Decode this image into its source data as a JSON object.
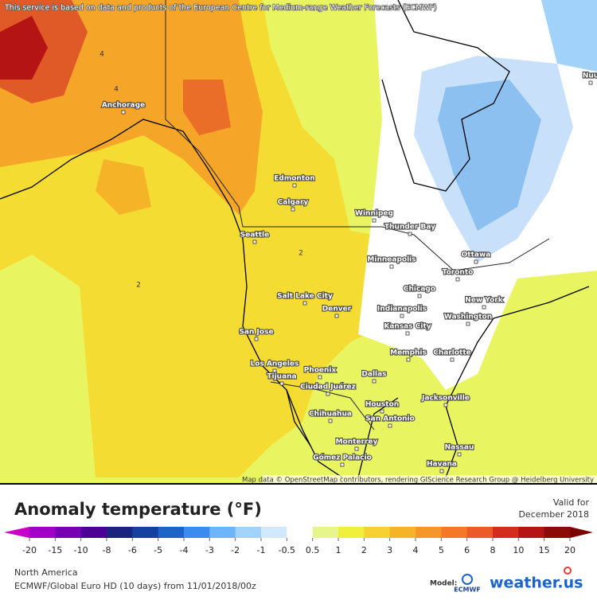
{
  "map": {
    "attribution_top": "This service is based on data and products of the European Centre for Medium-range Weather Forecasts (ECMWF)",
    "attribution_bottom": "Map data © OpenStreetMap contributors, rendering GIScience Research Group @ Heidelberg University",
    "contour_labels": [
      "4",
      "4",
      "2",
      "2"
    ],
    "cities": [
      "Anchorage",
      "Edmonton",
      "Calgary",
      "Winnipeg",
      "Thunder Bay",
      "Seattle",
      "Minneapolis",
      "Ottawa",
      "Toronto",
      "Chicago",
      "Salt Lake City",
      "Denver",
      "New York",
      "Indianapolis",
      "Washington",
      "Kansas City",
      "San Jose",
      "Memphis",
      "Charlotte",
      "Los Angeles",
      "Phoenix",
      "Dallas",
      "Tijuana",
      "Ciudad Juárez",
      "Jacksonville",
      "Houston",
      "Chihuahua",
      "San Antonio",
      "Monterrey",
      "Nassau",
      "Gómez Palacio",
      "Havana",
      "Nuu"
    ]
  },
  "legend": {
    "title": "Anomaly temperature (°F)",
    "valid_for": "Valid for",
    "valid_date": "December 2018",
    "colorbar": {
      "ticks": [
        -20,
        -15,
        -10,
        -8,
        -6,
        -5,
        -4,
        -3,
        -2,
        -1,
        -0.5,
        0.5,
        1,
        2,
        3,
        4,
        5,
        6,
        8,
        10,
        15,
        20
      ],
      "colors": [
        "#a000c8",
        "#7800b4",
        "#4b0096",
        "#1a237e",
        "#1540a0",
        "#1e64c8",
        "#3c8cf0",
        "#6eb4f8",
        "#a0d2fa",
        "#d2e8fc",
        "#ffffff",
        "#e6f58c",
        "#f0f03c",
        "#f5d232",
        "#f5b428",
        "#f59628",
        "#f57828",
        "#eb5a28",
        "#d22d1e",
        "#b41414",
        "#8c0a0a"
      ],
      "low_color": "#c800c8",
      "high_color": "#7a0000"
    }
  },
  "footer": {
    "region": "North America",
    "model_run": "ECMWF/Global Euro HD (10 days) from 11/01/2018/00z",
    "model_label": "Model:",
    "ecmwf_logo": "ECMWF",
    "brand": "weather.us"
  }
}
